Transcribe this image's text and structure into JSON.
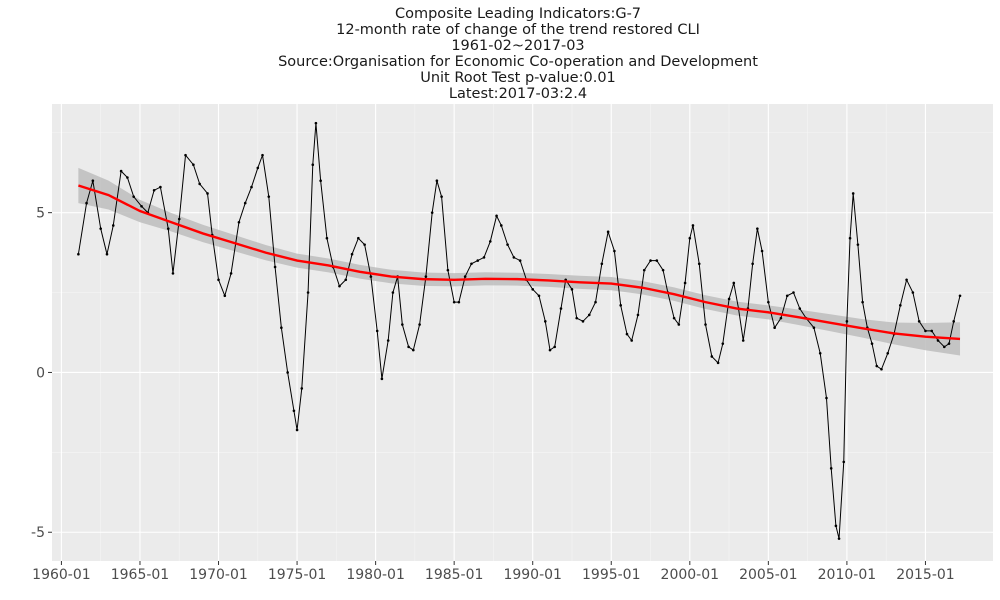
{
  "chart_data": {
    "type": "line",
    "title_lines": [
      "Composite Leading Indicators:G-7",
      "12-month rate of change of the trend restored CLI",
      "1961-02~2017-03",
      "Source:Organisation for Economic Co-operation and Development",
      "Unit Root Test p-value:0.01",
      "Latest:2017-03:2.4"
    ],
    "xlabel": "",
    "ylabel": "",
    "xlim": [
      1959.4,
      2019.3
    ],
    "ylim": [
      -5.9,
      8.4
    ],
    "x_ticks": [
      1960,
      1965,
      1970,
      1975,
      1980,
      1985,
      1990,
      1995,
      2000,
      2005,
      2010,
      2015
    ],
    "x_tick_labels": [
      "1960-01",
      "1965-01",
      "1970-01",
      "1975-01",
      "1980-01",
      "1985-01",
      "1990-01",
      "1995-01",
      "2000-01",
      "2005-01",
      "2010-01",
      "2015-01"
    ],
    "y_ticks": [
      -5,
      0,
      5
    ],
    "y_tick_labels": [
      "-5",
      "0",
      "5"
    ],
    "grid": true,
    "legend": "none",
    "colors": {
      "panel": "#ebebeb",
      "grid": "#ffffff",
      "series": "#000000",
      "trend": "#ff0000",
      "band": "#bdbdbd"
    },
    "series": [
      {
        "style": "line-with-points",
        "points": [
          [
            1961.08,
            3.7
          ],
          [
            1961.6,
            5.3
          ],
          [
            1962.0,
            6.0
          ],
          [
            1962.5,
            4.5
          ],
          [
            1962.9,
            3.7
          ],
          [
            1963.3,
            4.6
          ],
          [
            1963.8,
            6.3
          ],
          [
            1964.2,
            6.1
          ],
          [
            1964.6,
            5.5
          ],
          [
            1965.1,
            5.2
          ],
          [
            1965.5,
            5.0
          ],
          [
            1965.9,
            5.7
          ],
          [
            1966.3,
            5.8
          ],
          [
            1966.8,
            4.5
          ],
          [
            1967.1,
            3.1
          ],
          [
            1967.5,
            4.8
          ],
          [
            1967.9,
            6.8
          ],
          [
            1968.4,
            6.5
          ],
          [
            1968.8,
            5.9
          ],
          [
            1969.3,
            5.6
          ],
          [
            1969.6,
            4.3
          ],
          [
            1970.0,
            2.9
          ],
          [
            1970.4,
            2.4
          ],
          [
            1970.8,
            3.1
          ],
          [
            1971.3,
            4.7
          ],
          [
            1971.7,
            5.3
          ],
          [
            1972.1,
            5.8
          ],
          [
            1972.5,
            6.4
          ],
          [
            1972.8,
            6.8
          ],
          [
            1973.2,
            5.5
          ],
          [
            1973.6,
            3.3
          ],
          [
            1974.0,
            1.4
          ],
          [
            1974.4,
            0.0
          ],
          [
            1974.8,
            -1.2
          ],
          [
            1975.0,
            -1.8
          ],
          [
            1975.3,
            -0.5
          ],
          [
            1975.7,
            2.5
          ],
          [
            1976.0,
            6.5
          ],
          [
            1976.2,
            7.8
          ],
          [
            1976.5,
            6.0
          ],
          [
            1976.9,
            4.2
          ],
          [
            1977.3,
            3.3
          ],
          [
            1977.7,
            2.7
          ],
          [
            1978.1,
            2.9
          ],
          [
            1978.5,
            3.7
          ],
          [
            1978.9,
            4.2
          ],
          [
            1979.3,
            4.0
          ],
          [
            1979.7,
            3.0
          ],
          [
            1980.1,
            1.3
          ],
          [
            1980.4,
            -0.2
          ],
          [
            1980.8,
            1.0
          ],
          [
            1981.1,
            2.5
          ],
          [
            1981.4,
            3.0
          ],
          [
            1981.7,
            1.5
          ],
          [
            1982.1,
            0.8
          ],
          [
            1982.4,
            0.7
          ],
          [
            1982.8,
            1.5
          ],
          [
            1983.2,
            3.0
          ],
          [
            1983.6,
            5.0
          ],
          [
            1983.9,
            6.0
          ],
          [
            1984.2,
            5.5
          ],
          [
            1984.6,
            3.2
          ],
          [
            1985.0,
            2.2
          ],
          [
            1985.3,
            2.2
          ],
          [
            1985.7,
            3.0
          ],
          [
            1986.1,
            3.4
          ],
          [
            1986.5,
            3.5
          ],
          [
            1986.9,
            3.6
          ],
          [
            1987.3,
            4.1
          ],
          [
            1987.7,
            4.9
          ],
          [
            1988.0,
            4.6
          ],
          [
            1988.4,
            4.0
          ],
          [
            1988.8,
            3.6
          ],
          [
            1989.2,
            3.5
          ],
          [
            1989.6,
            2.9
          ],
          [
            1990.0,
            2.6
          ],
          [
            1990.4,
            2.4
          ],
          [
            1990.8,
            1.6
          ],
          [
            1991.1,
            0.7
          ],
          [
            1991.4,
            0.8
          ],
          [
            1991.8,
            2.0
          ],
          [
            1992.1,
            2.9
          ],
          [
            1992.5,
            2.6
          ],
          [
            1992.8,
            1.7
          ],
          [
            1993.2,
            1.6
          ],
          [
            1993.6,
            1.8
          ],
          [
            1994.0,
            2.2
          ],
          [
            1994.4,
            3.4
          ],
          [
            1994.8,
            4.4
          ],
          [
            1995.2,
            3.8
          ],
          [
            1995.6,
            2.1
          ],
          [
            1996.0,
            1.2
          ],
          [
            1996.3,
            1.0
          ],
          [
            1996.7,
            1.8
          ],
          [
            1997.1,
            3.2
          ],
          [
            1997.5,
            3.5
          ],
          [
            1997.9,
            3.5
          ],
          [
            1998.3,
            3.2
          ],
          [
            1998.6,
            2.5
          ],
          [
            1999.0,
            1.7
          ],
          [
            1999.3,
            1.5
          ],
          [
            1999.7,
            2.8
          ],
          [
            2000.0,
            4.2
          ],
          [
            2000.2,
            4.6
          ],
          [
            2000.6,
            3.4
          ],
          [
            2001.0,
            1.5
          ],
          [
            2001.4,
            0.5
          ],
          [
            2001.8,
            0.3
          ],
          [
            2002.1,
            0.9
          ],
          [
            2002.5,
            2.3
          ],
          [
            2002.8,
            2.8
          ],
          [
            2003.1,
            2.0
          ],
          [
            2003.4,
            1.0
          ],
          [
            2003.7,
            2.0
          ],
          [
            2004.0,
            3.4
          ],
          [
            2004.3,
            4.5
          ],
          [
            2004.6,
            3.8
          ],
          [
            2005.0,
            2.2
          ],
          [
            2005.4,
            1.4
          ],
          [
            2005.8,
            1.7
          ],
          [
            2006.2,
            2.4
          ],
          [
            2006.6,
            2.5
          ],
          [
            2007.0,
            2.0
          ],
          [
            2007.4,
            1.7
          ],
          [
            2007.9,
            1.4
          ],
          [
            2008.3,
            0.6
          ],
          [
            2008.7,
            -0.8
          ],
          [
            2009.0,
            -3.0
          ],
          [
            2009.3,
            -4.8
          ],
          [
            2009.5,
            -5.2
          ],
          [
            2009.8,
            -2.8
          ],
          [
            2010.0,
            1.6
          ],
          [
            2010.2,
            4.2
          ],
          [
            2010.4,
            5.6
          ],
          [
            2010.7,
            4.0
          ],
          [
            2011.0,
            2.2
          ],
          [
            2011.3,
            1.4
          ],
          [
            2011.6,
            0.9
          ],
          [
            2011.9,
            0.2
          ],
          [
            2012.2,
            0.1
          ],
          [
            2012.6,
            0.6
          ],
          [
            2013.0,
            1.2
          ],
          [
            2013.4,
            2.1
          ],
          [
            2013.8,
            2.9
          ],
          [
            2014.2,
            2.5
          ],
          [
            2014.6,
            1.6
          ],
          [
            2015.0,
            1.3
          ],
          [
            2015.4,
            1.3
          ],
          [
            2015.8,
            1.0
          ],
          [
            2016.2,
            0.8
          ],
          [
            2016.5,
            0.9
          ],
          [
            2016.8,
            1.6
          ],
          [
            2017.2,
            2.4
          ]
        ]
      }
    ],
    "trend": {
      "style": "loess-smooth-with-confidence-band",
      "points": [
        [
          1961.08,
          5.85
        ],
        [
          1963.0,
          5.55
        ],
        [
          1965.0,
          5.05
        ],
        [
          1967.0,
          4.7
        ],
        [
          1969.0,
          4.35
        ],
        [
          1971.0,
          4.05
        ],
        [
          1973.0,
          3.75
        ],
        [
          1975.0,
          3.5
        ],
        [
          1977.0,
          3.35
        ],
        [
          1979.0,
          3.15
        ],
        [
          1981.0,
          3.0
        ],
        [
          1983.0,
          2.92
        ],
        [
          1985.0,
          2.9
        ],
        [
          1987.0,
          2.93
        ],
        [
          1989.0,
          2.92
        ],
        [
          1991.0,
          2.88
        ],
        [
          1993.0,
          2.82
        ],
        [
          1995.0,
          2.78
        ],
        [
          1997.0,
          2.65
        ],
        [
          1999.0,
          2.45
        ],
        [
          2001.0,
          2.2
        ],
        [
          2003.0,
          2.0
        ],
        [
          2005.0,
          1.88
        ],
        [
          2007.0,
          1.72
        ],
        [
          2009.0,
          1.55
        ],
        [
          2011.0,
          1.38
        ],
        [
          2013.0,
          1.22
        ],
        [
          2015.0,
          1.12
        ],
        [
          2017.2,
          1.05
        ]
      ],
      "band_halfwidth": [
        [
          1961.08,
          0.55
        ],
        [
          1966.0,
          0.3
        ],
        [
          1975.0,
          0.22
        ],
        [
          1990.0,
          0.2
        ],
        [
          2005.0,
          0.22
        ],
        [
          2012.0,
          0.3
        ],
        [
          2017.2,
          0.52
        ]
      ]
    }
  }
}
